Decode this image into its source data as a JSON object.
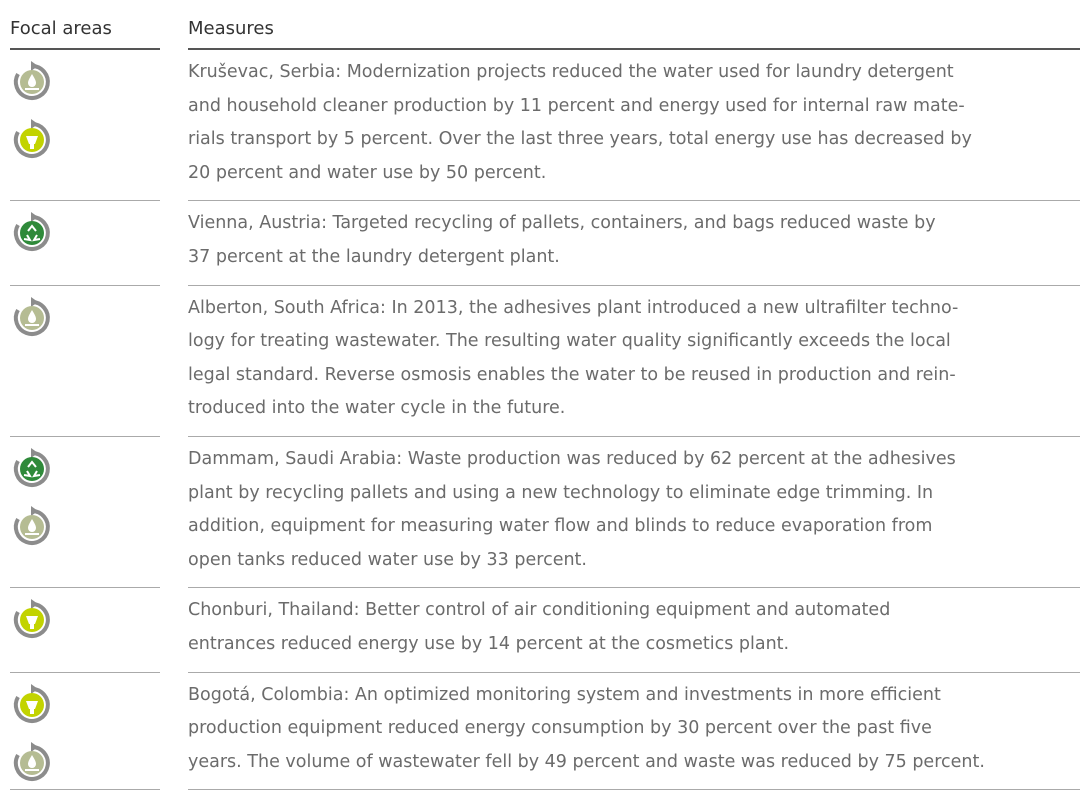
{
  "header": {
    "focal_areas": "Focal areas",
    "measures": "Measures"
  },
  "rows": [
    {
      "lines": [
        "Kruševac, Serbia: Modernization projects reduced the water used for laundry detergent",
        "and household cleaner production by 11 percent and energy used for internal raw mate-",
        "rials transport by 5  percent. Over the last three years, total energy use has decreased by",
        "20 percent and water use by 50 percent."
      ]
    },
    {
      "lines": [
        "Vienna, Austria: Targeted recycling of pallets, containers, and bags reduced waste by",
        "37 percent at the laundry detergent plant."
      ]
    },
    {
      "lines": [
        "Alberton, South Africa: In 2013, the adhesives plant introduced a new ultrafilter techno-",
        "logy for treating wastewater. The resulting water quality significantly exceeds the local",
        "legal standard. Reverse osmosis enables the water to be reused in production and rein-",
        "troduced into the water cycle in the future."
      ]
    },
    {
      "lines": [
        "Dammam, Saudi Arabia: Waste production was reduced by 62 percent at the adhesives",
        "plant by recycling pallets and using a new technology to eliminate edge trimming. In",
        "addition, equipment for measuring water flow and blinds to reduce evaporation from",
        "open tanks reduced water use by 33 percent."
      ]
    },
    {
      "lines": [
        "Chonburi, Thailand: Better control of air conditioning equipment and automated",
        "entrances reduced energy use by 14 percent at the cosmetics plant."
      ]
    },
    {
      "lines": [
        "Bogotá, Colombia: An optimized monitoring system and investments in more efficient",
        "production equipment reduced energy consumption by 30 percent over the past five",
        "years. The volume of wastewater fell by 49 percent and waste was reduced by 75 percent."
      ]
    }
  ]
}
